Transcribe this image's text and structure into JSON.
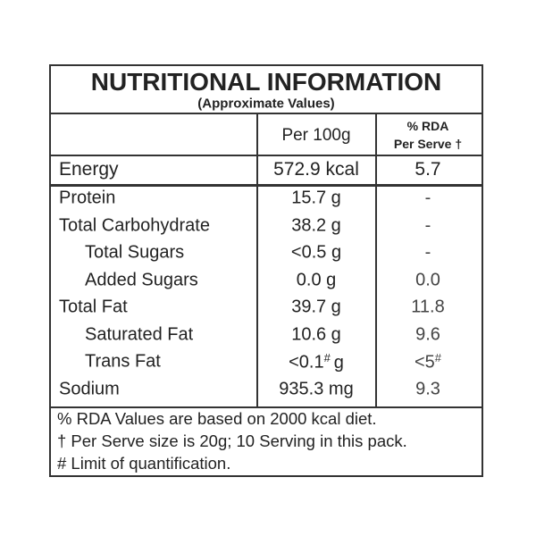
{
  "header": {
    "title": "NUTRITIONAL INFORMATION",
    "subtitle": "(Approximate Values)"
  },
  "columns": {
    "per_100g": "Per 100g",
    "rda": [
      "% RDA",
      "Per Serve †"
    ]
  },
  "energy": {
    "name": "Energy",
    "per_100g": "572.9 kcal",
    "rda": "5.7"
  },
  "rows": [
    {
      "name": "Protein",
      "per_100g": [
        "15.7 g"
      ],
      "rda": [
        "-"
      ]
    },
    {
      "name": "Total Carbohydrate",
      "per_100g": [
        "38.2 g"
      ],
      "rda": [
        "-"
      ]
    },
    {
      "name": "Total Sugars",
      "per_100g": [
        "<0.5 g"
      ],
      "rda": [
        "-"
      ]
    },
    {
      "name": "Added Sugars",
      "per_100g": [
        "0.0 g"
      ],
      "rda": [
        "0.0"
      ]
    },
    {
      "name": "Total Fat",
      "per_100g": [
        "39.7 g"
      ],
      "rda": [
        "11.8"
      ]
    },
    {
      "name": "Saturated Fat",
      "per_100g": [
        "10.6 g"
      ],
      "rda": [
        "9.6"
      ]
    },
    {
      "name": "Trans Fat",
      "per_100g": [
        "<0.1",
        "#",
        "g"
      ],
      "rda": [
        "<5",
        "#"
      ]
    },
    {
      "name": "Sodium",
      "per_100g": [
        "935.3 mg"
      ],
      "rda": [
        "9.3"
      ]
    }
  ],
  "footer": [
    "% RDA Values are based on 2000 kcal diet.",
    "† Per Serve size is 20g; 10 Serving in this pack.",
    "# Limit of quantification."
  ]
}
